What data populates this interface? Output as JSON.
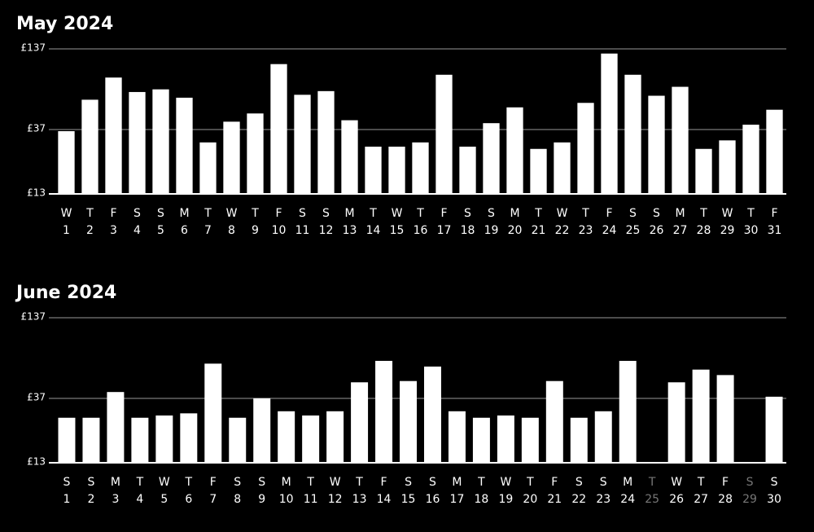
{
  "chart_data": [
    {
      "type": "bar",
      "title": "May 2024",
      "categories": [
        "1",
        "2",
        "3",
        "4",
        "5",
        "6",
        "7",
        "8",
        "9",
        "10",
        "11",
        "12",
        "13",
        "14",
        "15",
        "16",
        "17",
        "18",
        "19",
        "20",
        "21",
        "22",
        "23",
        "24",
        "25",
        "26",
        "27",
        "28",
        "29",
        "30",
        "31"
      ],
      "weekdays": [
        "W",
        "T",
        "F",
        "S",
        "S",
        "M",
        "T",
        "W",
        "T",
        "F",
        "S",
        "S",
        "M",
        "T",
        "W",
        "T",
        "F",
        "S",
        "S",
        "M",
        "T",
        "W",
        "T",
        "F",
        "S",
        "S",
        "M",
        "T",
        "W",
        "T",
        "F"
      ],
      "values": [
        36,
        60,
        86,
        68,
        71,
        62,
        30,
        42,
        48,
        107,
        65,
        69,
        43,
        28,
        28,
        30,
        90,
        28,
        41,
        53,
        27,
        30,
        57,
        127,
        90,
        64,
        74,
        27,
        31,
        40,
        51
      ],
      "color": "#ffffff",
      "log_scale": true,
      "grid": true,
      "ylim": [
        13,
        137
      ],
      "yticks": [
        {
          "value": 13,
          "label": "£13"
        },
        {
          "value": 37,
          "label": "£37"
        },
        {
          "value": 137,
          "label": "£137"
        }
      ]
    },
    {
      "type": "bar",
      "title": "June 2024",
      "categories": [
        "1",
        "2",
        "3",
        "4",
        "5",
        "6",
        "7",
        "8",
        "9",
        "10",
        "11",
        "12",
        "13",
        "14",
        "15",
        "16",
        "17",
        "18",
        "19",
        "20",
        "21",
        "22",
        "23",
        "24",
        "25",
        "26",
        "27",
        "28",
        "29",
        "30"
      ],
      "weekdays": [
        "S",
        "S",
        "M",
        "T",
        "W",
        "T",
        "F",
        "S",
        "S",
        "M",
        "T",
        "W",
        "T",
        "F",
        "S",
        "S",
        "M",
        "T",
        "W",
        "T",
        "F",
        "S",
        "S",
        "M",
        "T",
        "W",
        "T",
        "F",
        "S",
        "S"
      ],
      "values": [
        27,
        27,
        41,
        27,
        28,
        29,
        65,
        27,
        37,
        30,
        28,
        30,
        48,
        68,
        49,
        62,
        30,
        27,
        28,
        27,
        49,
        27,
        30,
        68,
        null,
        48,
        59,
        54,
        null,
        38
      ],
      "color": "#ffffff",
      "log_scale": true,
      "grid": true,
      "ylim": [
        13,
        137
      ],
      "yticks": [
        {
          "value": 13,
          "label": "£13"
        },
        {
          "value": 37,
          "label": "£37"
        },
        {
          "value": 137,
          "label": "£137"
        }
      ]
    }
  ]
}
